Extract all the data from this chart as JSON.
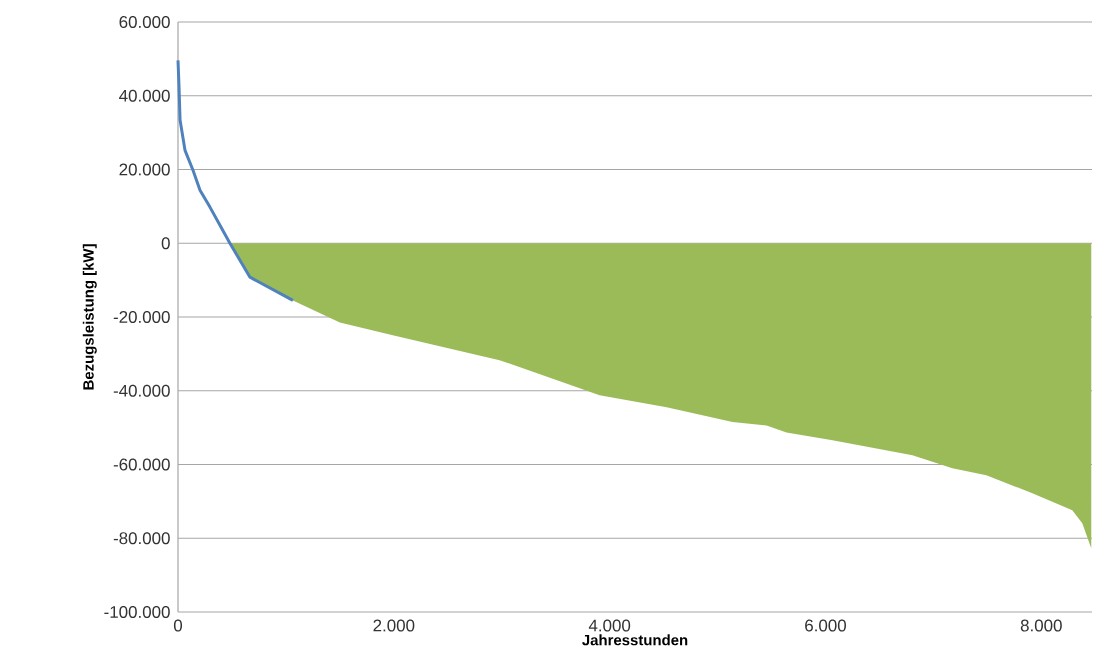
{
  "chart_data": {
    "type": "area",
    "xlabel": "Jahresstunden",
    "ylabel": "Bezugsleistung [kW]",
    "xlim": [
      0,
      8470
    ],
    "ylim": [
      -100000,
      60000
    ],
    "xticks": [
      0,
      {
        "value": 2000,
        "label": "2.000"
      },
      {
        "value": 4000,
        "label": "4.000"
      },
      {
        "value": 6000,
        "label": "6.000"
      },
      {
        "value": 8000,
        "label": "8.000"
      }
    ],
    "yticks": [
      {
        "value": -100000,
        "label": "-100.000"
      },
      {
        "value": -80000,
        "label": "-80.000"
      },
      {
        "value": -60000,
        "label": "-60.000"
      },
      {
        "value": -40000,
        "label": "-40.000"
      },
      {
        "value": -20000,
        "label": "-20.000"
      },
      0,
      {
        "value": 20000,
        "label": "20.000"
      },
      {
        "value": 40000,
        "label": "40.000"
      },
      {
        "value": 60000,
        "label": "60.000"
      }
    ],
    "grid": "y",
    "series": [
      {
        "color": "#9bbb59",
        "x": [
          481,
          667,
          1065,
          1500,
          2000,
          2980,
          3907,
          4528,
          5139,
          5454,
          5639,
          6065,
          6806,
          7176,
          7491,
          7917,
          8287,
          8380,
          8463
        ],
        "values": [
          0,
          -9200,
          -15500,
          -21500,
          -25000,
          -31700,
          -41200,
          -44500,
          -48500,
          -49400,
          -51300,
          -53400,
          -57500,
          -61000,
          -62900,
          -67800,
          -72400,
          -75900,
          -82700
        ]
      },
      {
        "type": "line",
        "color": "#4f81bd",
        "x": [
          0,
          9,
          19,
          65,
          139,
          204,
          296,
          389,
          481,
          667,
          1065
        ],
        "values": [
          49600,
          42800,
          33400,
          25200,
          19800,
          14400,
          9800,
          4900,
          0,
          -9200,
          -15500
        ]
      }
    ]
  }
}
